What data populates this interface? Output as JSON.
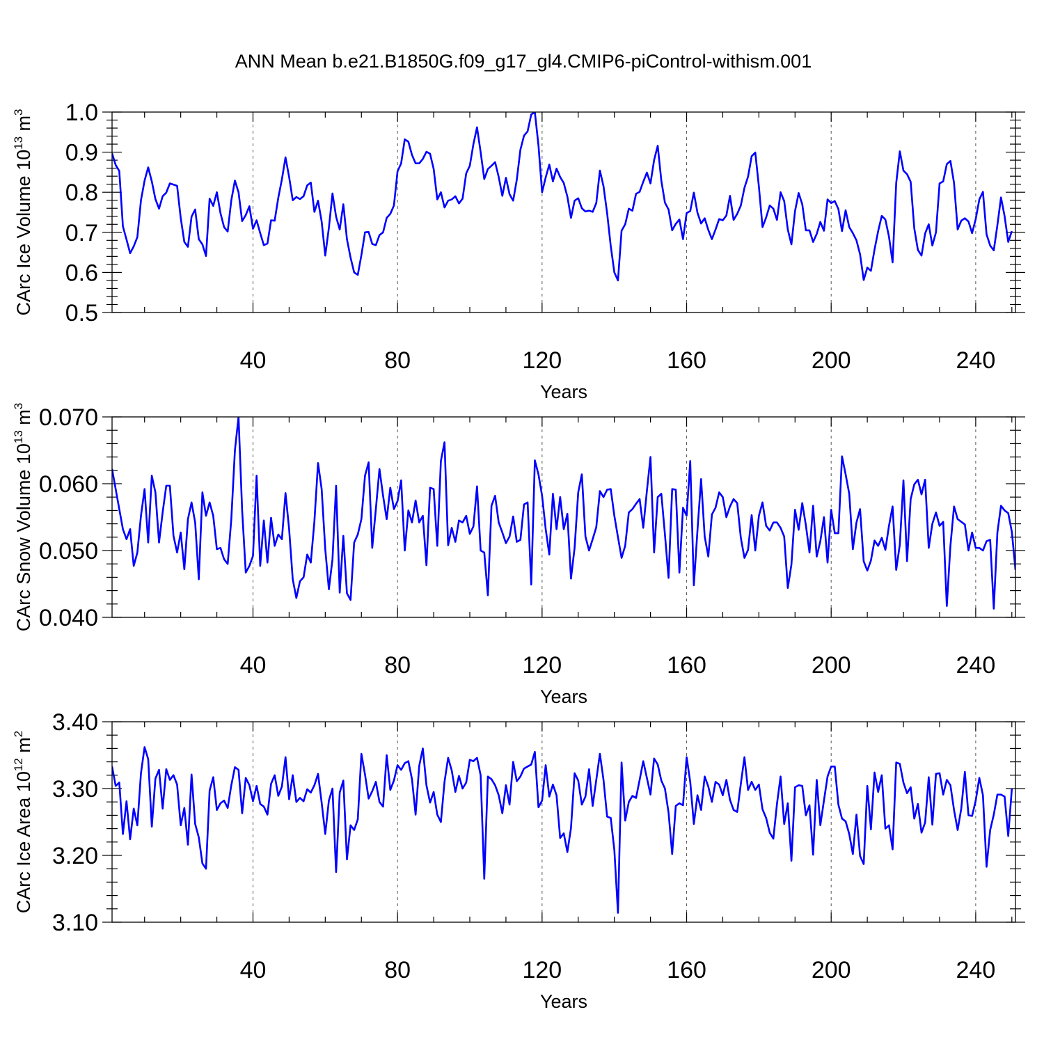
{
  "title": "ANN Mean b.e21.B1850G.f09_g17_gl4.CMIP6-piControl-withism.001",
  "series_color": "#0000ff",
  "chart_data": [
    {
      "type": "line",
      "name": "ice-volume",
      "ylabel_main": "CArc Ice Volume 10",
      "ylabel_exp": "13",
      "ylabel_unit": " m",
      "ylabel_unit_exp": "3",
      "xlabel": "Years",
      "xlim": [
        1,
        251
      ],
      "ylim": [
        0.5,
        1.0
      ],
      "x_ticks": [
        40,
        80,
        120,
        160,
        200,
        240
      ],
      "y_ticks": [
        "0.5",
        "0.6",
        "0.7",
        "0.8",
        "0.9",
        "1.0"
      ],
      "x_start": 1,
      "values": [
        0.897,
        0.868,
        0.853,
        0.715,
        0.682,
        0.648,
        0.665,
        0.688,
        0.78,
        0.829,
        0.862,
        0.827,
        0.783,
        0.759,
        0.79,
        0.799,
        0.822,
        0.819,
        0.816,
        0.736,
        0.676,
        0.664,
        0.739,
        0.757,
        0.683,
        0.67,
        0.641,
        0.784,
        0.766,
        0.8,
        0.748,
        0.713,
        0.702,
        0.78,
        0.829,
        0.8,
        0.728,
        0.743,
        0.765,
        0.709,
        0.73,
        0.698,
        0.668,
        0.672,
        0.73,
        0.729,
        0.786,
        0.832,
        0.887,
        0.838,
        0.78,
        0.788,
        0.783,
        0.79,
        0.817,
        0.824,
        0.751,
        0.779,
        0.727,
        0.642,
        0.711,
        0.797,
        0.739,
        0.707,
        0.77,
        0.683,
        0.637,
        0.6,
        0.594,
        0.643,
        0.7,
        0.701,
        0.671,
        0.668,
        0.693,
        0.7,
        0.736,
        0.746,
        0.767,
        0.852,
        0.872,
        0.932,
        0.926,
        0.893,
        0.872,
        0.872,
        0.883,
        0.901,
        0.896,
        0.858,
        0.782,
        0.8,
        0.762,
        0.779,
        0.782,
        0.79,
        0.772,
        0.784,
        0.847,
        0.866,
        0.92,
        0.962,
        0.9,
        0.833,
        0.858,
        0.866,
        0.875,
        0.838,
        0.791,
        0.836,
        0.795,
        0.779,
        0.831,
        0.906,
        0.941,
        0.952,
        0.994,
        1.0,
        0.917,
        0.8,
        0.837,
        0.869,
        0.827,
        0.859,
        0.838,
        0.823,
        0.789,
        0.736,
        0.779,
        0.785,
        0.76,
        0.752,
        0.754,
        0.751,
        0.773,
        0.854,
        0.815,
        0.748,
        0.666,
        0.6,
        0.58,
        0.704,
        0.72,
        0.759,
        0.754,
        0.796,
        0.801,
        0.826,
        0.849,
        0.822,
        0.88,
        0.916,
        0.829,
        0.774,
        0.757,
        0.705,
        0.721,
        0.732,
        0.683,
        0.748,
        0.753,
        0.799,
        0.749,
        0.722,
        0.735,
        0.706,
        0.683,
        0.707,
        0.733,
        0.73,
        0.742,
        0.791,
        0.731,
        0.746,
        0.767,
        0.811,
        0.839,
        0.89,
        0.899,
        0.814,
        0.713,
        0.737,
        0.767,
        0.759,
        0.731,
        0.8,
        0.778,
        0.707,
        0.67,
        0.753,
        0.798,
        0.77,
        0.705,
        0.705,
        0.676,
        0.696,
        0.726,
        0.704,
        0.782,
        0.773,
        0.778,
        0.758,
        0.703,
        0.755,
        0.713,
        0.698,
        0.68,
        0.645,
        0.581,
        0.612,
        0.604,
        0.657,
        0.703,
        0.741,
        0.732,
        0.689,
        0.625,
        0.823,
        0.902,
        0.854,
        0.845,
        0.826,
        0.71,
        0.656,
        0.642,
        0.697,
        0.72,
        0.667,
        0.7,
        0.822,
        0.827,
        0.87,
        0.878,
        0.823,
        0.707,
        0.729,
        0.735,
        0.727,
        0.698,
        0.733,
        0.782,
        0.801,
        0.695,
        0.667,
        0.655,
        0.718,
        0.787,
        0.74,
        0.676,
        0.703
      ]
    },
    {
      "type": "line",
      "name": "snow-volume",
      "ylabel_main": "CArc Snow Volume 10",
      "ylabel_exp": "13",
      "ylabel_unit": " m",
      "ylabel_unit_exp": "3",
      "xlabel": "Years",
      "xlim": [
        1,
        251
      ],
      "ylim": [
        0.04,
        0.07
      ],
      "x_ticks": [
        40,
        80,
        120,
        160,
        200,
        240
      ],
      "y_ticks": [
        "0.040",
        "0.050",
        "0.060",
        "0.070"
      ],
      "x_start": 1,
      "values": [
        0.0622,
        0.0592,
        0.0562,
        0.0532,
        0.0517,
        0.0532,
        0.0477,
        0.0497,
        0.0552,
        0.0592,
        0.0512,
        0.0612,
        0.0587,
        0.0512,
        0.0557,
        0.0597,
        0.0597,
        0.0522,
        0.0497,
        0.0527,
        0.0472,
        0.0547,
        0.0572,
        0.0542,
        0.0457,
        0.0587,
        0.0552,
        0.0572,
        0.0552,
        0.0502,
        0.0504,
        0.0487,
        0.048,
        0.0547,
        0.065,
        0.07,
        0.056,
        0.0467,
        0.0477,
        0.0492,
        0.0612,
        0.0477,
        0.0545,
        0.0482,
        0.0549,
        0.0507,
        0.0524,
        0.0517,
        0.0586,
        0.0532,
        0.0457,
        0.0429,
        0.0454,
        0.046,
        0.0494,
        0.0482,
        0.0544,
        0.0631,
        0.0592,
        0.0502,
        0.0442,
        0.0487,
        0.0597,
        0.0437,
        0.0522,
        0.0436,
        0.0426,
        0.0512,
        0.0524,
        0.0547,
        0.0612,
        0.0632,
        0.0504,
        0.0562,
        0.0622,
        0.0582,
        0.0547,
        0.0594,
        0.0562,
        0.0574,
        0.0605,
        0.05,
        0.056,
        0.0542,
        0.0575,
        0.0542,
        0.0552,
        0.0478,
        0.0594,
        0.0592,
        0.0507,
        0.0634,
        0.0662,
        0.0508,
        0.0534,
        0.0513,
        0.0545,
        0.0542,
        0.0552,
        0.0525,
        0.0536,
        0.0596,
        0.05,
        0.0497,
        0.0433,
        0.0567,
        0.0582,
        0.0542,
        0.0527,
        0.0511,
        0.0521,
        0.0551,
        0.0513,
        0.0516,
        0.0569,
        0.0572,
        0.0449,
        0.0635,
        0.0614,
        0.0582,
        0.0532,
        0.0494,
        0.0585,
        0.0532,
        0.058,
        0.0532,
        0.0555,
        0.0458,
        0.0504,
        0.0587,
        0.0614,
        0.0521,
        0.05,
        0.0517,
        0.0535,
        0.0589,
        0.058,
        0.0591,
        0.0592,
        0.0552,
        0.052,
        0.0489,
        0.0507,
        0.0557,
        0.0562,
        0.057,
        0.0577,
        0.0534,
        0.0589,
        0.064,
        0.0497,
        0.058,
        0.0585,
        0.0524,
        0.0459,
        0.0592,
        0.0591,
        0.0467,
        0.0564,
        0.0552,
        0.0634,
        0.0448,
        0.053,
        0.0607,
        0.0521,
        0.0491,
        0.0554,
        0.0564,
        0.0587,
        0.058,
        0.055,
        0.0566,
        0.0577,
        0.0571,
        0.0519,
        0.0489,
        0.0501,
        0.0553,
        0.05,
        0.0552,
        0.0572,
        0.0537,
        0.053,
        0.0542,
        0.0542,
        0.0534,
        0.0521,
        0.0444,
        0.0479,
        0.0561,
        0.0531,
        0.0571,
        0.0538,
        0.0497,
        0.0567,
        0.0491,
        0.0514,
        0.055,
        0.0482,
        0.0561,
        0.0526,
        0.0526,
        0.0641,
        0.0614,
        0.0585,
        0.0502,
        0.0542,
        0.0562,
        0.0484,
        0.047,
        0.0485,
        0.0515,
        0.0507,
        0.0519,
        0.0501,
        0.0537,
        0.0566,
        0.0471,
        0.0509,
        0.0605,
        0.0484,
        0.0577,
        0.0599,
        0.0606,
        0.0584,
        0.0606,
        0.0504,
        0.054,
        0.0557,
        0.0537,
        0.0543,
        0.0417,
        0.0507,
        0.0566,
        0.0547,
        0.0543,
        0.0539,
        0.05,
        0.0527,
        0.0504,
        0.0504,
        0.05,
        0.0514,
        0.0516,
        0.0413,
        0.0527,
        0.0567,
        0.056,
        0.0556,
        0.0528,
        0.0471
      ]
    },
    {
      "type": "line",
      "name": "ice-area",
      "ylabel_main": "CArc Ice Area 10",
      "ylabel_exp": "12",
      "ylabel_unit": " m",
      "ylabel_unit_exp": "2",
      "xlabel": "Years",
      "xlim": [
        1,
        251
      ],
      "ylim": [
        3.1,
        3.4
      ],
      "x_ticks": [
        40,
        80,
        120,
        160,
        200,
        240
      ],
      "y_ticks": [
        "3.10",
        "3.20",
        "3.30",
        "3.40"
      ],
      "x_start": 1,
      "values": [
        3.333,
        3.304,
        3.309,
        3.232,
        3.281,
        3.224,
        3.27,
        3.245,
        3.323,
        3.362,
        3.344,
        3.243,
        3.315,
        3.328,
        3.27,
        3.329,
        3.313,
        3.32,
        3.306,
        3.245,
        3.271,
        3.216,
        3.321,
        3.247,
        3.227,
        3.188,
        3.18,
        3.297,
        3.317,
        3.268,
        3.278,
        3.282,
        3.271,
        3.305,
        3.332,
        3.328,
        3.263,
        3.316,
        3.305,
        3.281,
        3.304,
        3.277,
        3.273,
        3.261,
        3.307,
        3.32,
        3.289,
        3.303,
        3.347,
        3.284,
        3.32,
        3.28,
        3.286,
        3.281,
        3.299,
        3.294,
        3.305,
        3.322,
        3.279,
        3.232,
        3.282,
        3.3,
        3.175,
        3.294,
        3.312,
        3.194,
        3.245,
        3.238,
        3.254,
        3.352,
        3.321,
        3.285,
        3.296,
        3.31,
        3.28,
        3.273,
        3.35,
        3.298,
        3.312,
        3.335,
        3.328,
        3.338,
        3.341,
        3.314,
        3.261,
        3.334,
        3.36,
        3.305,
        3.279,
        3.295,
        3.261,
        3.25,
        3.31,
        3.346,
        3.327,
        3.295,
        3.319,
        3.3,
        3.309,
        3.343,
        3.341,
        3.346,
        3.32,
        3.165,
        3.318,
        3.314,
        3.305,
        3.29,
        3.263,
        3.305,
        3.276,
        3.34,
        3.311,
        3.318,
        3.33,
        3.333,
        3.336,
        3.355,
        3.272,
        3.282,
        3.335,
        3.288,
        3.306,
        3.29,
        3.226,
        3.233,
        3.205,
        3.241,
        3.323,
        3.312,
        3.276,
        3.288,
        3.329,
        3.274,
        3.313,
        3.352,
        3.313,
        3.258,
        3.256,
        3.208,
        3.114,
        3.339,
        3.252,
        3.28,
        3.289,
        3.286,
        3.313,
        3.341,
        3.316,
        3.291,
        3.345,
        3.336,
        3.312,
        3.3,
        3.264,
        3.202,
        3.274,
        3.278,
        3.275,
        3.347,
        3.31,
        3.247,
        3.29,
        3.268,
        3.318,
        3.303,
        3.28,
        3.31,
        3.306,
        3.29,
        3.313,
        3.283,
        3.268,
        3.265,
        3.307,
        3.347,
        3.298,
        3.31,
        3.298,
        3.306,
        3.269,
        3.256,
        3.234,
        3.225,
        3.277,
        3.318,
        3.247,
        3.278,
        3.192,
        3.302,
        3.305,
        3.304,
        3.26,
        3.275,
        3.201,
        3.313,
        3.245,
        3.282,
        3.318,
        3.333,
        3.333,
        3.276,
        3.255,
        3.251,
        3.232,
        3.202,
        3.261,
        3.199,
        3.187,
        3.304,
        3.239,
        3.324,
        3.295,
        3.32,
        3.24,
        3.245,
        3.209,
        3.339,
        3.337,
        3.309,
        3.293,
        3.302,
        3.255,
        3.277,
        3.234,
        3.249,
        3.317,
        3.246,
        3.322,
        3.323,
        3.291,
        3.313,
        3.305,
        3.268,
        3.238,
        3.27,
        3.325,
        3.26,
        3.259,
        3.282,
        3.316,
        3.29,
        3.183,
        3.238,
        3.261,
        3.291,
        3.291,
        3.288,
        3.229,
        3.3
      ]
    }
  ]
}
